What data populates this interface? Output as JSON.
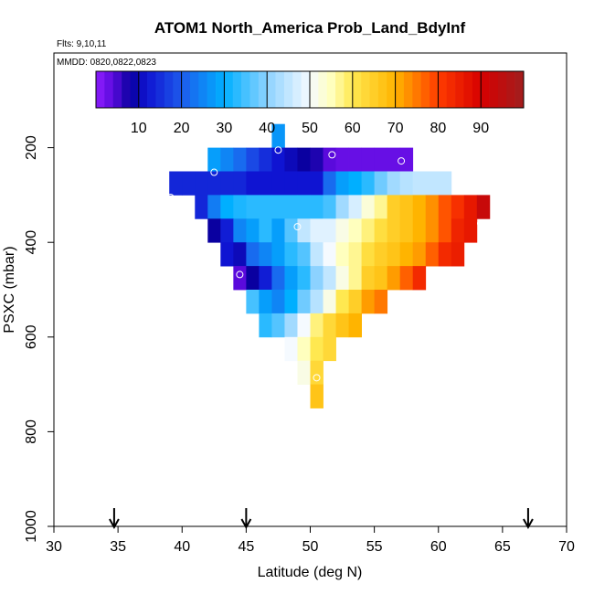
{
  "chart_data": {
    "type": "heatmap",
    "title": "ATOM1 North_America Prob_Land_BdyInf",
    "flights_label": "Flts: 9,10,11",
    "dates_label": "MMDD: 0820,0822,0823",
    "xlabel": "Latitude (deg N)",
    "ylabel": "PSXC (mbar)",
    "xlim": [
      30,
      70
    ],
    "ylim": [
      1000,
      0
    ],
    "x_ticks": [
      "30",
      "35",
      "40",
      "45",
      "50",
      "55",
      "60",
      "65",
      "70"
    ],
    "y_ticks": [
      "200",
      "400",
      "600",
      "800",
      "1000"
    ],
    "colorbar": {
      "range": [
        0,
        100
      ],
      "ticks": [
        "10",
        "20",
        "30",
        "40",
        "50",
        "60",
        "70",
        "80",
        "90"
      ]
    },
    "cell_size": {
      "lat": 1,
      "pressure": 50
    },
    "arrow_latitudes": [
      34.7,
      45,
      67
    ],
    "cells": [
      [
        47.5,
        175,
        27
      ],
      [
        42.5,
        225,
        28
      ],
      [
        43.5,
        225,
        25
      ],
      [
        44.5,
        225,
        22
      ],
      [
        45.5,
        225,
        18
      ],
      [
        46.5,
        225,
        15
      ],
      [
        47.5,
        225,
        12
      ],
      [
        48.5,
        225,
        10
      ],
      [
        49.5,
        225,
        8
      ],
      [
        50.5,
        225,
        7
      ],
      [
        51.5,
        225,
        4
      ],
      [
        52.5,
        225,
        3
      ],
      [
        53.5,
        225,
        3
      ],
      [
        54.5,
        225,
        3
      ],
      [
        55.5,
        225,
        3
      ],
      [
        56.5,
        225,
        3
      ],
      [
        57.5,
        225,
        3
      ],
      [
        39.5,
        275,
        14
      ],
      [
        40.5,
        275,
        14
      ],
      [
        41.5,
        275,
        14
      ],
      [
        42.5,
        275,
        14
      ],
      [
        43.5,
        275,
        14
      ],
      [
        44.5,
        275,
        14
      ],
      [
        45.5,
        275,
        12
      ],
      [
        46.5,
        275,
        12
      ],
      [
        47.5,
        275,
        12
      ],
      [
        48.5,
        275,
        12
      ],
      [
        49.5,
        275,
        12
      ],
      [
        50.5,
        275,
        12
      ],
      [
        51.5,
        275,
        22
      ],
      [
        52.5,
        275,
        28
      ],
      [
        53.5,
        275,
        30
      ],
      [
        54.5,
        275,
        33
      ],
      [
        55.5,
        275,
        38
      ],
      [
        56.5,
        275,
        42
      ],
      [
        57.5,
        275,
        44
      ],
      [
        58.5,
        275,
        45
      ],
      [
        59.5,
        275,
        45
      ],
      [
        60.5,
        275,
        45
      ],
      [
        41.5,
        325,
        14
      ],
      [
        42.5,
        325,
        24
      ],
      [
        43.5,
        325,
        30
      ],
      [
        44.5,
        325,
        32
      ],
      [
        45.5,
        325,
        33
      ],
      [
        46.5,
        325,
        33
      ],
      [
        47.5,
        325,
        33
      ],
      [
        48.5,
        325,
        33
      ],
      [
        49.5,
        325,
        33
      ],
      [
        50.5,
        325,
        33
      ],
      [
        51.5,
        325,
        35
      ],
      [
        52.5,
        325,
        42
      ],
      [
        53.5,
        325,
        47
      ],
      [
        54.5,
        325,
        53
      ],
      [
        55.5,
        325,
        57
      ],
      [
        56.5,
        325,
        65
      ],
      [
        57.5,
        325,
        67
      ],
      [
        58.5,
        325,
        70
      ],
      [
        59.5,
        325,
        73
      ],
      [
        60.5,
        325,
        78
      ],
      [
        61.5,
        325,
        82
      ],
      [
        62.5,
        325,
        86
      ],
      [
        63.5,
        325,
        93
      ],
      [
        42.5,
        375,
        8
      ],
      [
        43.5,
        375,
        13
      ],
      [
        44.5,
        375,
        25
      ],
      [
        45.5,
        375,
        28
      ],
      [
        46.5,
        375,
        33
      ],
      [
        47.5,
        375,
        28
      ],
      [
        48.5,
        375,
        36
      ],
      [
        49.5,
        375,
        45
      ],
      [
        50.5,
        375,
        48
      ],
      [
        51.5,
        375,
        48
      ],
      [
        52.5,
        375,
        52
      ],
      [
        53.5,
        375,
        55
      ],
      [
        54.5,
        375,
        58
      ],
      [
        55.5,
        375,
        62
      ],
      [
        56.5,
        375,
        65
      ],
      [
        57.5,
        375,
        67
      ],
      [
        58.5,
        375,
        70
      ],
      [
        59.5,
        375,
        73
      ],
      [
        60.5,
        375,
        78
      ],
      [
        61.5,
        375,
        84
      ],
      [
        62.5,
        375,
        86
      ],
      [
        43.5,
        425,
        12
      ],
      [
        44.5,
        425,
        10
      ],
      [
        45.5,
        425,
        22
      ],
      [
        46.5,
        425,
        25
      ],
      [
        47.5,
        425,
        28
      ],
      [
        48.5,
        425,
        33
      ],
      [
        49.5,
        425,
        36
      ],
      [
        50.5,
        425,
        45
      ],
      [
        51.5,
        425,
        50
      ],
      [
        52.5,
        425,
        55
      ],
      [
        53.5,
        425,
        57
      ],
      [
        54.5,
        425,
        62
      ],
      [
        55.5,
        425,
        65
      ],
      [
        56.5,
        425,
        67
      ],
      [
        57.5,
        425,
        70
      ],
      [
        58.5,
        425,
        72
      ],
      [
        59.5,
        425,
        77
      ],
      [
        60.5,
        425,
        83
      ],
      [
        61.5,
        425,
        85
      ],
      [
        44.5,
        475,
        4
      ],
      [
        45.5,
        475,
        8
      ],
      [
        46.5,
        475,
        13
      ],
      [
        47.5,
        475,
        22
      ],
      [
        48.5,
        475,
        28
      ],
      [
        49.5,
        475,
        33
      ],
      [
        50.5,
        475,
        40
      ],
      [
        51.5,
        475,
        45
      ],
      [
        52.5,
        475,
        52
      ],
      [
        53.5,
        475,
        57
      ],
      [
        54.5,
        475,
        65
      ],
      [
        55.5,
        475,
        67
      ],
      [
        56.5,
        475,
        72
      ],
      [
        57.5,
        475,
        77
      ],
      [
        58.5,
        475,
        83
      ],
      [
        45.5,
        525,
        35
      ],
      [
        46.5,
        525,
        28
      ],
      [
        47.5,
        525,
        25
      ],
      [
        48.5,
        525,
        30
      ],
      [
        49.5,
        525,
        38
      ],
      [
        50.5,
        525,
        44
      ],
      [
        51.5,
        525,
        52
      ],
      [
        52.5,
        525,
        60
      ],
      [
        53.5,
        525,
        65
      ],
      [
        54.5,
        525,
        72
      ],
      [
        55.5,
        525,
        75
      ],
      [
        46.5,
        575,
        33
      ],
      [
        47.5,
        575,
        36
      ],
      [
        48.5,
        575,
        42
      ],
      [
        49.5,
        575,
        50
      ],
      [
        50.5,
        575,
        58
      ],
      [
        51.5,
        575,
        63
      ],
      [
        52.5,
        575,
        67
      ],
      [
        53.5,
        575,
        70
      ],
      [
        48.5,
        625,
        50
      ],
      [
        49.5,
        625,
        55
      ],
      [
        50.5,
        625,
        60
      ],
      [
        51.5,
        625,
        63
      ],
      [
        49.5,
        675,
        52
      ],
      [
        50.5,
        675,
        63
      ],
      [
        50.5,
        725,
        67
      ]
    ],
    "markers": [
      [
        47.5,
        205
      ],
      [
        42.5,
        252
      ],
      [
        51.7,
        215
      ],
      [
        57.1,
        228
      ],
      [
        39.1,
        305
      ],
      [
        49.0,
        367
      ],
      [
        63.3,
        360
      ],
      [
        44.5,
        468
      ],
      [
        50.5,
        686
      ]
    ]
  }
}
